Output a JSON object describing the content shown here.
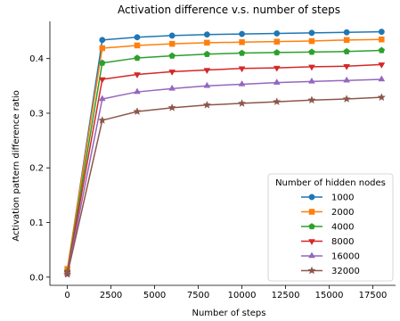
{
  "chart_data": {
    "type": "line",
    "title": "Activation difference v.s. number of steps",
    "xlabel": "Number of steps",
    "ylabel": "Activation pattern difference ratio",
    "xlim": [
      -1000,
      18800
    ],
    "ylim": [
      -0.015,
      0.468
    ],
    "xticks": [
      0,
      2500,
      5000,
      7500,
      10000,
      12500,
      15000,
      17500
    ],
    "xtick_labels": [
      "0",
      "2500",
      "5000",
      "7500",
      "10000",
      "12500",
      "15000",
      "17500"
    ],
    "yticks": [
      0.0,
      0.1,
      0.2,
      0.3,
      0.4
    ],
    "ytick_labels": [
      "0.0",
      "0.1",
      "0.2",
      "0.3",
      "0.4"
    ],
    "grid": false,
    "legend": {
      "title": "Number of hidden nodes",
      "placement": "lower-right"
    },
    "x": [
      0,
      2000,
      4000,
      6000,
      8000,
      10000,
      12000,
      14000,
      16000,
      18000
    ],
    "series": [
      {
        "name": "1000",
        "color": "#1f77b4",
        "marker": "circle",
        "values": [
          0.012,
          0.434,
          0.439,
          0.442,
          0.444,
          0.445,
          0.446,
          0.447,
          0.448,
          0.449
        ]
      },
      {
        "name": "2000",
        "color": "#ff7f0e",
        "marker": "square",
        "values": [
          0.015,
          0.419,
          0.424,
          0.427,
          0.429,
          0.43,
          0.431,
          0.432,
          0.434,
          0.435
        ]
      },
      {
        "name": "4000",
        "color": "#2ca02c",
        "marker": "pentagon",
        "values": [
          0.01,
          0.392,
          0.401,
          0.405,
          0.408,
          0.41,
          0.411,
          0.412,
          0.413,
          0.415
        ]
      },
      {
        "name": "8000",
        "color": "#d62728",
        "marker": "triangle-down",
        "values": [
          0.008,
          0.362,
          0.371,
          0.376,
          0.379,
          0.382,
          0.383,
          0.385,
          0.386,
          0.389
        ]
      },
      {
        "name": "16000",
        "color": "#9467bd",
        "marker": "triangle-up",
        "values": [
          0.006,
          0.326,
          0.339,
          0.345,
          0.35,
          0.353,
          0.356,
          0.358,
          0.36,
          0.362
        ]
      },
      {
        "name": "32000",
        "color": "#8c564b",
        "marker": "star",
        "values": [
          0.005,
          0.287,
          0.303,
          0.31,
          0.315,
          0.318,
          0.321,
          0.324,
          0.326,
          0.329
        ]
      }
    ]
  }
}
